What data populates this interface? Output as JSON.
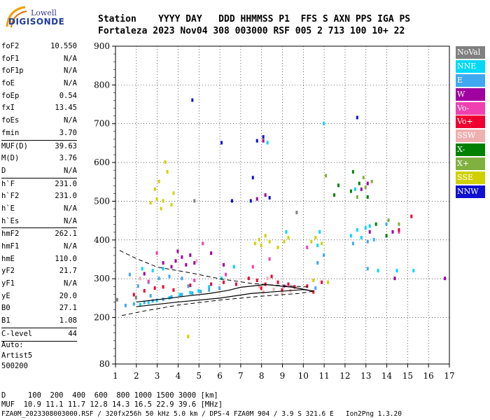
{
  "logo": {
    "line1": "Lowell",
    "line2": "DIGISONDE"
  },
  "header": {
    "row1": "Station    YYYY DAY   DDD HHMMSS P1  FFS S AXN PPS IGA PS",
    "row2": "Fortaleza 2023 Nov04 308 003000 RSF 005 2 713 100 10+ 22"
  },
  "params": [
    {
      "name": "foF2",
      "value": "10.550",
      "sep": false
    },
    {
      "name": "foF1",
      "value": "N/A",
      "sep": false
    },
    {
      "name": "foF1p",
      "value": "N/A",
      "sep": false
    },
    {
      "name": "foE",
      "value": "N/A",
      "sep": false
    },
    {
      "name": "foEp",
      "value": "0.54",
      "sep": false
    },
    {
      "name": "fxI",
      "value": "13.45",
      "sep": false
    },
    {
      "name": "foEs",
      "value": "N/A",
      "sep": false
    },
    {
      "name": "fmin",
      "value": "3.70",
      "sep": true
    },
    {
      "name": "MUF(D)",
      "value": "39.63",
      "sep": false
    },
    {
      "name": "M(D)",
      "value": "3.76",
      "sep": false
    },
    {
      "name": "D",
      "value": "N/A",
      "sep": true
    },
    {
      "name": "h`F",
      "value": "231.0",
      "sep": false
    },
    {
      "name": "h`F2",
      "value": "231.0",
      "sep": false
    },
    {
      "name": "h`E",
      "value": "N/A",
      "sep": false
    },
    {
      "name": "h`Es",
      "value": "N/A",
      "sep": true
    },
    {
      "name": "hmF2",
      "value": "262.1",
      "sep": false
    },
    {
      "name": "hmF1",
      "value": "N/A",
      "sep": false
    },
    {
      "name": "hmE",
      "value": "110.0",
      "sep": false
    },
    {
      "name": "yF2",
      "value": "21.7",
      "sep": false
    },
    {
      "name": "yF1",
      "value": "N/A",
      "sep": false
    },
    {
      "name": "yE",
      "value": "20.0",
      "sep": false
    },
    {
      "name": "B0",
      "value": "27.1",
      "sep": false
    },
    {
      "name": "B1",
      "value": "1.08",
      "sep": true
    },
    {
      "name": "C-level",
      "value": "44",
      "sep": true
    }
  ],
  "autoscale": {
    "line1": "Auto:",
    "line2": "Artist5",
    "line3": "500200"
  },
  "legend": [
    {
      "label": "NoVal",
      "color": "#808080"
    },
    {
      "label": "NNE",
      "color": "#00d8f8"
    },
    {
      "label": "E",
      "color": "#40a8f0"
    },
    {
      "label": "W",
      "color": "#a000a0"
    },
    {
      "label": "Vo-",
      "color": "#f040b0"
    },
    {
      "label": "Vo+",
      "color": "#f00030"
    },
    {
      "label": "SSW",
      "color": "#f0b0b0"
    },
    {
      "label": "X-",
      "color": "#008000"
    },
    {
      "label": "X+",
      "color": "#80b040"
    },
    {
      "label": "SSE",
      "color": "#d0d000"
    },
    {
      "label": "NNW",
      "color": "#1010d0"
    }
  ],
  "footer": {
    "d_line": "D     100  200  400  600  800 1000 1500 3000 [km]",
    "muf_line": "MUF  10.9 11.1 11.7 12.8 14.3 16.5 22.9 39.6 [MHz]",
    "file_line": "FZA0M_2023308003000.RSF / 320fx256h 50 kHz 5.0 km / DPS-4 FZA0M 904 / 3.9 S 321.6 E   Ion2Png 1.3.20"
  },
  "chart_data": {
    "type": "scatter",
    "xlim": [
      1,
      17
    ],
    "ylim": [
      80,
      900
    ],
    "x_ticks": [
      1,
      2,
      3,
      4,
      5,
      6,
      7,
      8,
      9,
      10,
      11,
      12,
      13,
      14,
      15,
      16,
      17
    ],
    "y_ticks": [
      80,
      200,
      300,
      400,
      500,
      600,
      700,
      800,
      900
    ],
    "grid": true,
    "legend_position": "right",
    "series": [
      {
        "name": "NNE",
        "points": [
          [
            2.2,
            232
          ],
          [
            2.6,
            238
          ],
          [
            3.0,
            243
          ],
          [
            3.6,
            250
          ],
          [
            4.1,
            258
          ],
          [
            4.6,
            263
          ],
          [
            5.0,
            268
          ],
          [
            5.5,
            278
          ],
          [
            6.1,
            300
          ],
          [
            6.7,
            330
          ],
          [
            2.3,
            325
          ],
          [
            2.8,
            320
          ],
          [
            3.3,
            325
          ],
          [
            10.7,
            385
          ],
          [
            10.8,
            420
          ],
          [
            12.3,
            410
          ],
          [
            12.6,
            425
          ],
          [
            13.0,
            430
          ],
          [
            13.2,
            435
          ],
          [
            12.8,
            405
          ],
          [
            13.6,
            320
          ],
          [
            14.5,
            320
          ],
          [
            15.3,
            320
          ],
          [
            11.0,
            700
          ],
          [
            12.5,
            530
          ],
          [
            8.3,
            650
          ],
          [
            9.2,
            420
          ]
        ]
      },
      {
        "name": "E",
        "points": [
          [
            1.5,
            230
          ],
          [
            1.9,
            234
          ],
          [
            2.4,
            238
          ],
          [
            2.8,
            242
          ],
          [
            3.3,
            246
          ],
          [
            3.7,
            252
          ],
          [
            4.2,
            258
          ],
          [
            4.7,
            262
          ],
          [
            5.1,
            266
          ],
          [
            5.5,
            270
          ],
          [
            6.0,
            275
          ],
          [
            2.1,
            280
          ],
          [
            2.6,
            290
          ],
          [
            3.1,
            300
          ],
          [
            3.6,
            305
          ],
          [
            4.2,
            300
          ],
          [
            1.7,
            310
          ],
          [
            10.7,
            340
          ],
          [
            11.0,
            360
          ],
          [
            12.4,
            390
          ],
          [
            13.1,
            395
          ],
          [
            13.4,
            400
          ],
          [
            10.6,
            275
          ],
          [
            13.1,
            325
          ],
          [
            14.0,
            440
          ],
          [
            2.7,
            255
          ],
          [
            4.5,
            280
          ]
        ]
      },
      {
        "name": "W",
        "points": [
          [
            3.9,
            345
          ],
          [
            4.2,
            355
          ],
          [
            4.6,
            360
          ],
          [
            4.4,
            335
          ],
          [
            3.7,
            330
          ],
          [
            4.0,
            370
          ],
          [
            4.8,
            340
          ],
          [
            3.3,
            340
          ],
          [
            12.8,
            530
          ],
          [
            13.1,
            545
          ],
          [
            7.8,
            505
          ],
          [
            8.2,
            515
          ],
          [
            13.2,
            420
          ],
          [
            14.3,
            420
          ],
          [
            8.1,
            655
          ],
          [
            6.2,
            335
          ],
          [
            5.6,
            365
          ],
          [
            2.4,
            312
          ],
          [
            14.4,
            300
          ],
          [
            16.8,
            300
          ]
        ]
      },
      {
        "name": "Vo-",
        "points": [
          [
            2.6,
            292
          ],
          [
            4.8,
            295
          ],
          [
            6.3,
            310
          ],
          [
            7.6,
            330
          ],
          [
            8.4,
            350
          ],
          [
            9.1,
            280
          ],
          [
            10.2,
            380
          ],
          [
            14.6,
            420
          ],
          [
            3.0,
            365
          ],
          [
            5.2,
            390
          ]
        ]
      },
      {
        "name": "Vo+",
        "points": [
          [
            1.9,
            258
          ],
          [
            2.4,
            268
          ],
          [
            2.9,
            275
          ],
          [
            3.3,
            278
          ],
          [
            3.8,
            270
          ],
          [
            4.6,
            282
          ],
          [
            5.6,
            285
          ],
          [
            6.2,
            290
          ],
          [
            6.8,
            285
          ],
          [
            7.4,
            300
          ],
          [
            7.8,
            295
          ],
          [
            8.0,
            275
          ],
          [
            8.2,
            285
          ],
          [
            8.5,
            305
          ],
          [
            8.8,
            290
          ],
          [
            9.0,
            270
          ],
          [
            9.3,
            285
          ],
          [
            9.6,
            278
          ],
          [
            10.2,
            280
          ],
          [
            10.5,
            265
          ],
          [
            10.9,
            290
          ],
          [
            14.6,
            425
          ],
          [
            15.2,
            460
          ]
        ]
      },
      {
        "name": "SSW",
        "points": [
          [
            8.1,
            265
          ],
          [
            8.6,
            272
          ],
          [
            9.0,
            262
          ],
          [
            9.4,
            268
          ],
          [
            7.9,
            280
          ],
          [
            8.3,
            300
          ],
          [
            2.2,
            300
          ],
          [
            4.9,
            345
          ]
        ]
      },
      {
        "name": "X-",
        "points": [
          [
            11.5,
            515
          ],
          [
            11.7,
            540
          ],
          [
            12.3,
            525
          ],
          [
            12.7,
            545
          ],
          [
            13.1,
            510
          ],
          [
            12.4,
            575
          ],
          [
            14.0,
            410
          ],
          [
            13.5,
            440
          ]
        ]
      },
      {
        "name": "X+",
        "points": [
          [
            12.6,
            510
          ],
          [
            13.0,
            535
          ],
          [
            13.3,
            550
          ],
          [
            14.1,
            450
          ],
          [
            14.6,
            440
          ],
          [
            11.1,
            565
          ],
          [
            12.9,
            560
          ]
        ]
      },
      {
        "name": "SSE",
        "points": [
          [
            2.7,
            495
          ],
          [
            3.0,
            505
          ],
          [
            3.3,
            500
          ],
          [
            3.7,
            490
          ],
          [
            2.9,
            530
          ],
          [
            3.1,
            550
          ],
          [
            3.5,
            575
          ],
          [
            3.8,
            520
          ],
          [
            3.2,
            480
          ],
          [
            7.7,
            390
          ],
          [
            7.9,
            400
          ],
          [
            8.2,
            410
          ],
          [
            8.4,
            395
          ],
          [
            8.0,
            385
          ],
          [
            8.8,
            380
          ],
          [
            9.1,
            395
          ],
          [
            9.3,
            405
          ],
          [
            10.4,
            395
          ],
          [
            10.6,
            405
          ],
          [
            10.9,
            390
          ],
          [
            11.2,
            290
          ],
          [
            10.5,
            295
          ],
          [
            3.4,
            600
          ],
          [
            4.5,
            150
          ]
        ]
      },
      {
        "name": "NNW",
        "points": [
          [
            4.7,
            760
          ],
          [
            6.1,
            650
          ],
          [
            7.8,
            655
          ],
          [
            8.1,
            665
          ],
          [
            12.6,
            715
          ],
          [
            6.6,
            500
          ],
          [
            7.5,
            500
          ],
          [
            8.4,
            508
          ],
          [
            7.6,
            560
          ]
        ]
      },
      {
        "name": "NoVal",
        "points": [
          [
            1.1,
            245
          ],
          [
            2.0,
            250
          ],
          [
            4.8,
            500
          ],
          [
            9.7,
            470
          ]
        ]
      }
    ]
  }
}
